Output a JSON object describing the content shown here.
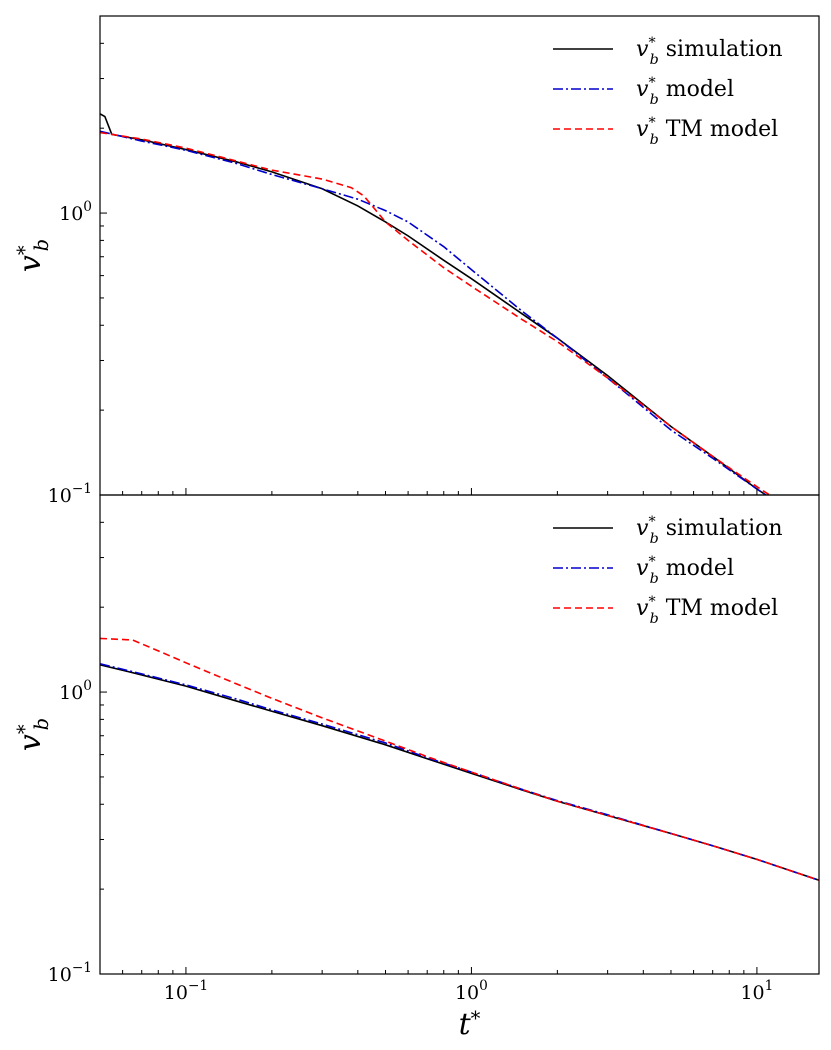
{
  "chart_data": [
    {
      "type": "line",
      "panel": "top",
      "x_scale": "log",
      "y_scale": "log",
      "xlim": [
        0.05,
        16.5
      ],
      "ylim": [
        0.1,
        5.0
      ],
      "ylabel": "v*_b",
      "xlabel": "",
      "yticks": [
        {
          "value": 1.0,
          "label": "10^0"
        },
        {
          "value": 0.1,
          "label": "10^-1"
        }
      ],
      "legend": {
        "placement": "upper-right"
      },
      "grid": false,
      "series": [
        {
          "name": "v*_b simulation",
          "color": "#000000",
          "dash": "solid",
          "x": [
            0.05,
            0.052,
            0.055,
            0.07,
            0.1,
            0.15,
            0.2,
            0.3,
            0.4,
            0.5,
            0.6,
            0.8,
            1.0,
            1.5,
            2.0,
            3.0,
            5.0,
            7.0,
            10.0,
            13.0
          ],
          "y": [
            2.25,
            2.2,
            1.9,
            1.82,
            1.68,
            1.52,
            1.4,
            1.22,
            1.06,
            0.93,
            0.83,
            0.68,
            0.585,
            0.44,
            0.36,
            0.265,
            0.175,
            0.137,
            0.105,
            0.088
          ]
        },
        {
          "name": "v*_b model",
          "color": "#0000cc",
          "dash": "dashdot",
          "x": [
            0.05,
            0.07,
            0.1,
            0.15,
            0.2,
            0.3,
            0.4,
            0.5,
            0.6,
            0.8,
            1.0,
            1.5,
            2.0,
            3.0,
            5.0,
            7.0,
            10.0,
            13.0
          ],
          "y": [
            1.95,
            1.8,
            1.67,
            1.5,
            1.37,
            1.22,
            1.12,
            1.02,
            0.93,
            0.76,
            0.63,
            0.45,
            0.36,
            0.26,
            0.17,
            0.135,
            0.105,
            0.088
          ]
        },
        {
          "name": "v*_b TM model",
          "color": "#ff0000",
          "dash": "dashed",
          "x": [
            0.05,
            0.07,
            0.1,
            0.15,
            0.2,
            0.3,
            0.38,
            0.42,
            0.5,
            0.6,
            0.8,
            1.0,
            1.5,
            2.0,
            3.0,
            5.0,
            7.0,
            10.0,
            13.0
          ],
          "y": [
            1.93,
            1.83,
            1.7,
            1.53,
            1.42,
            1.32,
            1.23,
            1.15,
            0.93,
            0.8,
            0.64,
            0.55,
            0.42,
            0.35,
            0.26,
            0.175,
            0.137,
            0.107,
            0.09
          ]
        }
      ]
    },
    {
      "type": "line",
      "panel": "bottom",
      "x_scale": "log",
      "y_scale": "log",
      "xlim": [
        0.05,
        16.5
      ],
      "ylim": [
        0.1,
        5.0
      ],
      "ylabel": "v*_b",
      "xlabel": "t*",
      "xticks": [
        {
          "value": 0.1,
          "label": "10^-1"
        },
        {
          "value": 1.0,
          "label": "10^0"
        },
        {
          "value": 10.0,
          "label": "10^1"
        }
      ],
      "yticks": [
        {
          "value": 1.0,
          "label": "10^0"
        },
        {
          "value": 0.1,
          "label": "10^-1"
        }
      ],
      "legend": {
        "placement": "upper-right"
      },
      "grid": false,
      "series": [
        {
          "name": "v*_b simulation",
          "color": "#000000",
          "dash": "solid",
          "x": [
            0.05,
            0.07,
            0.1,
            0.15,
            0.2,
            0.3,
            0.5,
            0.7,
            1.0,
            1.5,
            2.0,
            3.0,
            5.0,
            7.0,
            10.0,
            16.5
          ],
          "y": [
            1.25,
            1.15,
            1.05,
            0.93,
            0.855,
            0.76,
            0.65,
            0.58,
            0.515,
            0.45,
            0.41,
            0.365,
            0.315,
            0.285,
            0.255,
            0.215
          ]
        },
        {
          "name": "v*_b model",
          "color": "#0000cc",
          "dash": "dashdot",
          "x": [
            0.05,
            0.07,
            0.1,
            0.15,
            0.2,
            0.3,
            0.5,
            0.7,
            1.0,
            1.5,
            2.0,
            3.0,
            5.0,
            7.0,
            10.0,
            16.5
          ],
          "y": [
            1.26,
            1.16,
            1.06,
            0.945,
            0.865,
            0.77,
            0.66,
            0.585,
            0.52,
            0.452,
            0.412,
            0.367,
            0.315,
            0.285,
            0.255,
            0.215
          ]
        },
        {
          "name": "v*_b TM model",
          "color": "#ff0000",
          "dash": "dashed",
          "x": [
            0.05,
            0.065,
            0.08,
            0.1,
            0.15,
            0.2,
            0.3,
            0.5,
            0.7,
            1.0,
            1.5,
            2.0,
            3.0,
            5.0,
            7.0,
            10.0,
            16.5
          ],
          "y": [
            1.55,
            1.53,
            1.4,
            1.27,
            1.07,
            0.95,
            0.81,
            0.67,
            0.59,
            0.52,
            0.452,
            0.41,
            0.365,
            0.315,
            0.285,
            0.255,
            0.215
          ]
        }
      ]
    }
  ]
}
